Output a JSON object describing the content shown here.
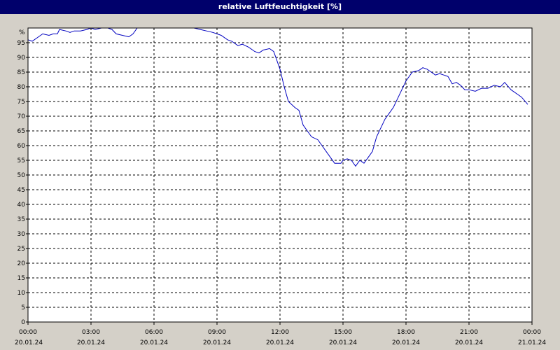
{
  "title": "relative Luftfeuchtigkeit [%]",
  "colors": {
    "title_bg": "#00006b",
    "title_fg": "#ffffff",
    "frame_bg": "#d4d0c8",
    "plot_bg": "#ffffff",
    "line": "#0000c0",
    "grid": "#000000"
  },
  "chart_data": {
    "type": "line",
    "title": "relative Luftfeuchtigkeit [%]",
    "xlabel": "",
    "ylabel": "",
    "unit_label": "%",
    "ylim": [
      0,
      100
    ],
    "yticks": [
      0,
      5,
      10,
      15,
      20,
      25,
      30,
      35,
      40,
      45,
      50,
      55,
      60,
      65,
      70,
      75,
      80,
      85,
      90,
      95
    ],
    "x_hours_range": [
      0,
      24
    ],
    "xticks": [
      {
        "time": "00:00",
        "date": "20.01.24"
      },
      {
        "time": "03:00",
        "date": "20.01.24"
      },
      {
        "time": "06:00",
        "date": "20.01.24"
      },
      {
        "time": "09:00",
        "date": "20.01.24"
      },
      {
        "time": "12:00",
        "date": "20.01.24"
      },
      {
        "time": "15:00",
        "date": "20.01.24"
      },
      {
        "time": "18:00",
        "date": "20.01.24"
      },
      {
        "time": "21:00",
        "date": "20.01.24"
      },
      {
        "time": "00:00",
        "date": "21.01.24"
      }
    ],
    "grid": true,
    "series": [
      {
        "x": [
          0.0,
          0.2,
          0.5,
          0.7,
          1.0,
          1.2,
          1.4,
          1.5,
          1.8,
          2.0,
          2.2,
          2.5,
          2.8,
          3.0,
          3.2,
          3.5,
          3.8,
          4.0,
          4.2,
          4.5,
          4.8,
          5.0,
          5.2,
          5.5,
          6.0,
          6.5,
          7.0,
          7.5,
          7.9,
          8.2,
          8.5,
          8.8,
          9.0,
          9.2,
          9.5,
          9.7,
          10.0,
          10.2,
          10.5,
          10.8,
          11.0,
          11.2,
          11.5,
          11.7,
          12.0,
          12.2,
          12.4,
          12.7,
          12.9,
          13.1,
          13.3,
          13.5,
          13.8,
          14.0,
          14.2,
          14.4,
          14.6,
          14.9,
          15.0,
          15.2,
          15.4,
          15.6,
          15.8,
          16.0,
          16.2,
          16.4,
          16.6,
          16.8,
          17.0,
          17.2,
          17.4,
          17.6,
          17.8,
          18.0,
          18.3,
          18.6,
          18.8,
          19.0,
          19.2,
          19.4,
          19.6,
          19.8,
          20.0,
          20.2,
          20.4,
          20.6,
          20.8,
          21.0,
          21.3,
          21.6,
          21.9,
          22.2,
          22.5,
          22.7,
          23.0,
          23.3,
          23.5,
          23.8
        ],
        "y": [
          96,
          95.5,
          97,
          98,
          97.5,
          98,
          98,
          99.5,
          99,
          98.5,
          99,
          99,
          99.5,
          100,
          99.5,
          100,
          100.5,
          99.5,
          98,
          97.5,
          97,
          98,
          100,
          100,
          100,
          100,
          100,
          100,
          100,
          99.5,
          99,
          98.5,
          98,
          97.5,
          96,
          95.5,
          94,
          94.5,
          93.5,
          92,
          91.5,
          92.5,
          93,
          92,
          86,
          80,
          75,
          73,
          72,
          67,
          65,
          63,
          62,
          60,
          58,
          56,
          54,
          54,
          55,
          55.5,
          55,
          53,
          55,
          54,
          56,
          58,
          63,
          66,
          69,
          71,
          73,
          76,
          79,
          82,
          85,
          85.5,
          86.5,
          86,
          85,
          84,
          84.5,
          84,
          83.5,
          81,
          81.5,
          80.5,
          79,
          79,
          78.5,
          79.5,
          79.5,
          80.5,
          80,
          81.5,
          79,
          77.5,
          76.5,
          74
        ]
      }
    ]
  }
}
